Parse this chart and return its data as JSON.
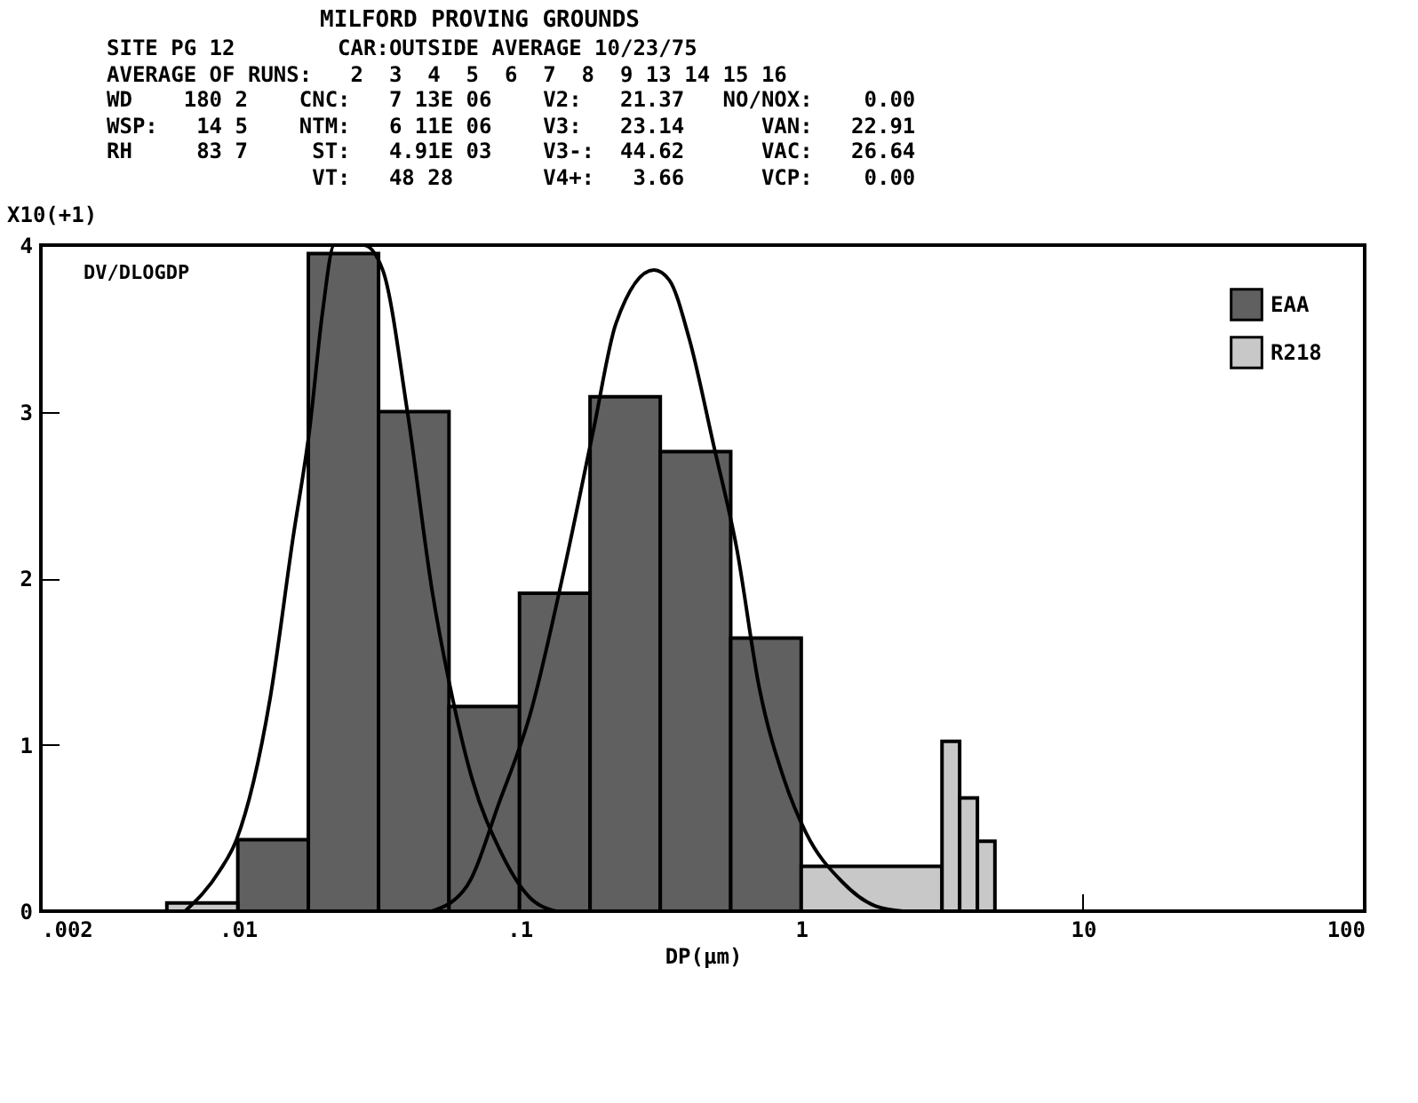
{
  "chart_data": {
    "type": "histogram",
    "title": "MILFORD PROVING GROUNDS",
    "subtitle": "SITE PG 12        CAR:OUTSIDE AVERAGE 10/23/75\nAVERAGE OF RUNS:   2  3  4  5  6  7  8  9 13 14 15 16\nWD    180 2    CNC:   7 13E 06    V2:   21.37   NO/NOX:    0.00\nWSP:   14 5    NTM:   6 11E 06    V3:   23.14      VAN:   22.91\nRH     83 7     ST:   4.91E 03    V3-:  44.62      VAC:   26.64\n                VT:   48 28       V4+:   3.66      VCP:    0.00",
    "xlabel": "DP(μm)",
    "ylabel": "DV/DLOGDP",
    "annotations": [
      "X10(+1)"
    ],
    "series": [
      {
        "name": "EAA",
        "color": "#606060",
        "bins": [
          0.01,
          0.0178,
          0.0316,
          0.0562,
          0.1,
          0.178,
          0.316,
          0.562,
          1
        ],
        "values": [
          0.43,
          3.95,
          3.0,
          1.23,
          1.91,
          3.09,
          2.76,
          1.64
        ]
      },
      {
        "name": "R218",
        "color": "#c8c8c8",
        "bins": [
          0.0056,
          0.01,
          1,
          3.16,
          3.65,
          4.22,
          4.87
        ],
        "values": [
          0.05,
          null,
          0.27,
          1.02,
          0.68,
          0.42
        ]
      },
      {
        "type": "line",
        "color": "#000000",
        "x": [
          0.0065,
          0.0086,
          0.0099,
          0.013,
          0.0157,
          0.018,
          0.02,
          0.022,
          0.028,
          0.0327,
          0.04,
          0.049,
          0.058,
          0.068,
          0.085,
          0.109,
          0.135
        ],
        "values": [
          0,
          0.24,
          0.43,
          1.27,
          2.24,
          2.9,
          3.6,
          4,
          4,
          3.85,
          3.0,
          1.92,
          1.27,
          0.79,
          0.37,
          0.08,
          0
        ]
      },
      {
        "type": "line",
        "color": "#000000",
        "x": [
          0.049,
          0.065,
          0.085,
          0.109,
          0.144,
          0.183,
          0.22,
          0.3,
          0.34,
          0.4,
          0.49,
          0.59,
          0.71,
          0.87,
          1.04,
          1.39,
          1.84,
          2.3
        ],
        "values": [
          0,
          0.15,
          0.66,
          1.18,
          2.05,
          2.89,
          3.53,
          3.85,
          3.79,
          3.44,
          2.79,
          2.18,
          1.34,
          0.79,
          0.47,
          0.18,
          0.03,
          0
        ]
      }
    ],
    "log": "x",
    "xlim": [
      0.002,
      100
    ],
    "xticks": [
      {
        "value": 0.002,
        "label": ".002"
      },
      {
        "value": 0.01,
        "label": ".01"
      },
      {
        "value": 0.1,
        "label": ".1"
      },
      1,
      10,
      100
    ],
    "ylim": [
      0,
      4
    ],
    "yticks": [
      0,
      1,
      2,
      3,
      4
    ],
    "grid": false,
    "legend": "top right"
  }
}
